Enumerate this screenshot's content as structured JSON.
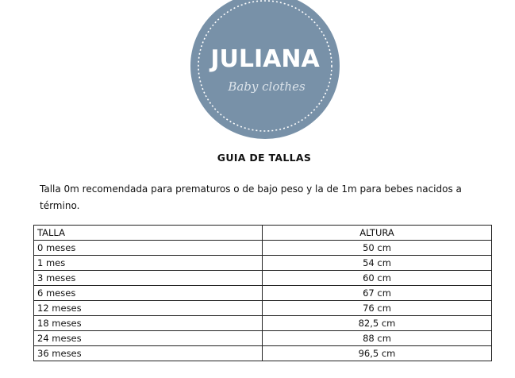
{
  "logo": {
    "brand": "JULIANA",
    "tagline": "Baby clothes",
    "color": "#7891a8"
  },
  "document": {
    "title": "GUIA DE TALLAS",
    "intro": "Talla 0m recomendada para prematuros o de bajo peso y la de 1m para bebes nacidos a término."
  },
  "table": {
    "headers": [
      "TALLA",
      "ALTURA"
    ],
    "rows": [
      [
        "0 meses",
        "50 cm"
      ],
      [
        "1 mes",
        "54 cm"
      ],
      [
        "3 meses",
        "60 cm"
      ],
      [
        "6 meses",
        "67 cm"
      ],
      [
        "12 meses",
        "76 cm"
      ],
      [
        "18 meses",
        "82,5 cm"
      ],
      [
        "24 meses",
        "88 cm"
      ],
      [
        "36 meses",
        "96,5 cm"
      ]
    ]
  }
}
